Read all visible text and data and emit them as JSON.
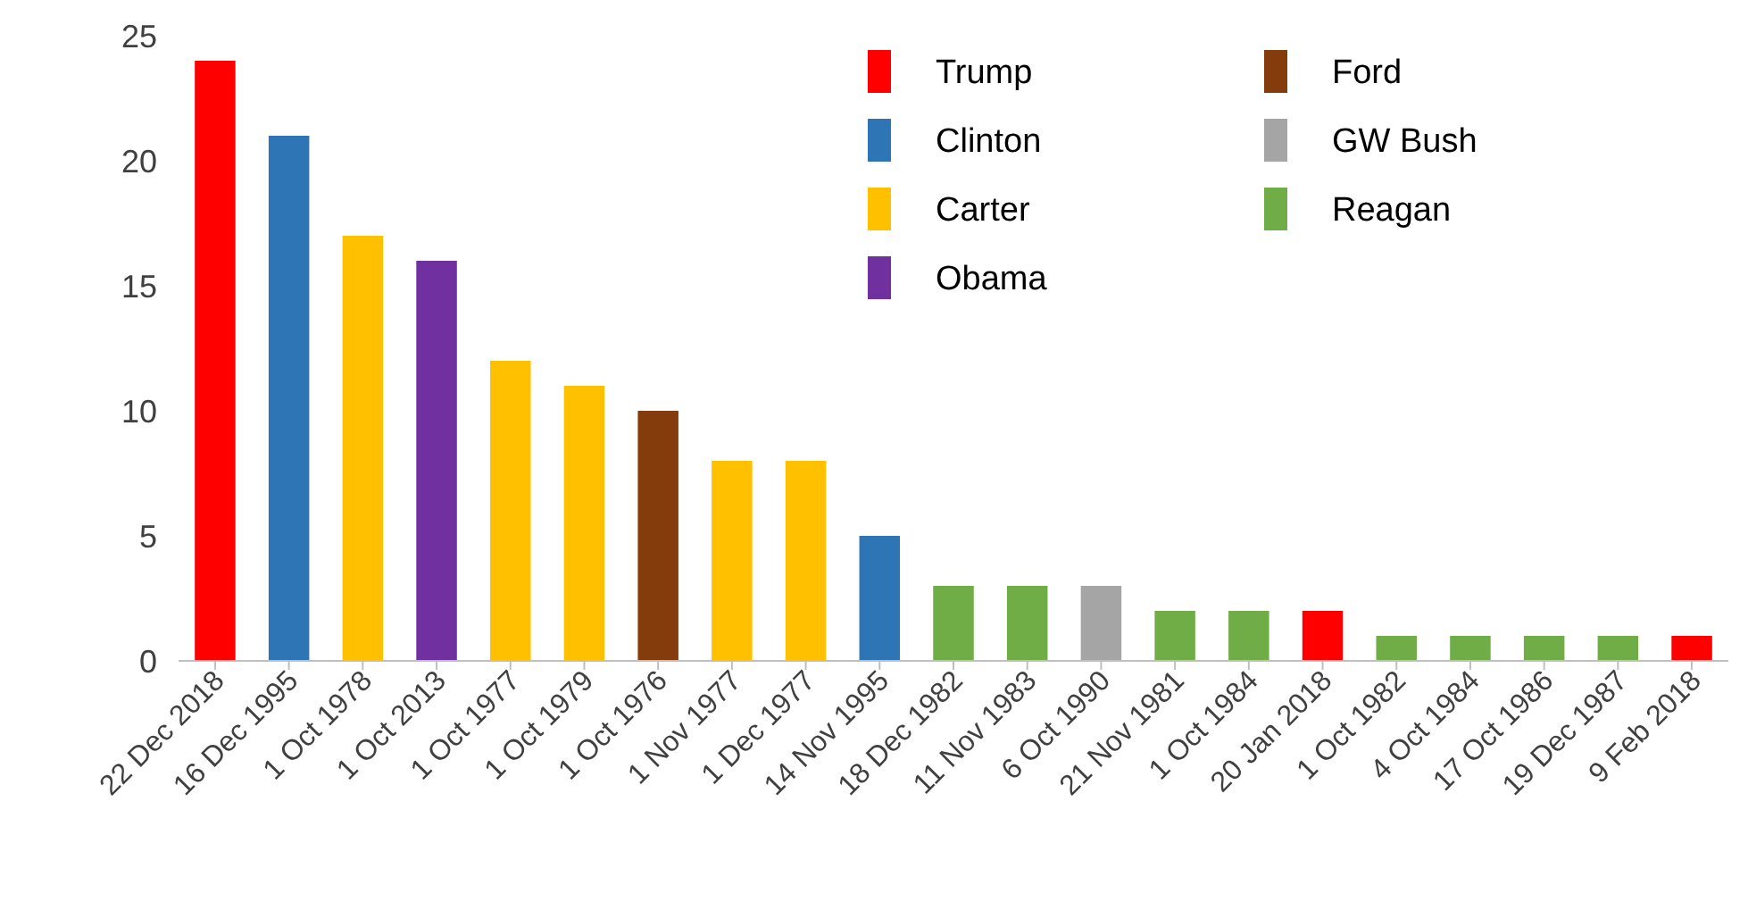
{
  "chart_data": {
    "type": "bar",
    "categories": [
      "22 Dec 2018",
      "16 Dec 1995",
      "1 Oct 1978",
      "1 Oct 2013",
      "1 Oct 1977",
      "1 Oct 1979",
      "1 Oct 1976",
      "1 Nov 1977",
      "1 Dec 1977",
      "14 Nov 1995",
      "18 Dec 1982",
      "11 Nov 1983",
      "6 Oct 1990",
      "21 Nov 1981",
      "1 Oct 1984",
      "20 Jan 2018",
      "1 Oct 1982",
      "4 Oct 1984",
      "17 Oct 1986",
      "19 Dec 1987",
      "9 Feb 2018"
    ],
    "series": [
      {
        "name": "Trump",
        "color": "#ff0000",
        "values": [
          24,
          null,
          null,
          null,
          null,
          null,
          null,
          null,
          null,
          null,
          null,
          null,
          null,
          null,
          null,
          2,
          null,
          null,
          null,
          null,
          1
        ]
      },
      {
        "name": "Clinton",
        "color": "#2e75b6",
        "values": [
          null,
          21,
          null,
          null,
          null,
          null,
          null,
          null,
          null,
          5,
          null,
          null,
          null,
          null,
          null,
          null,
          null,
          null,
          null,
          null,
          null
        ]
      },
      {
        "name": "Carter",
        "color": "#ffc000",
        "values": [
          null,
          null,
          17,
          null,
          12,
          11,
          null,
          8,
          8,
          null,
          null,
          null,
          null,
          null,
          null,
          null,
          null,
          null,
          null,
          null,
          null
        ]
      },
      {
        "name": "Obama",
        "color": "#7030a0",
        "values": [
          null,
          null,
          null,
          16,
          null,
          null,
          null,
          null,
          null,
          null,
          null,
          null,
          null,
          null,
          null,
          null,
          null,
          null,
          null,
          null,
          null
        ]
      },
      {
        "name": "Ford",
        "color": "#843c0c",
        "values": [
          null,
          null,
          null,
          null,
          null,
          null,
          10,
          null,
          null,
          null,
          null,
          null,
          null,
          null,
          null,
          null,
          null,
          null,
          null,
          null,
          null
        ]
      },
      {
        "name": "GW Bush",
        "color": "#a5a5a5",
        "values": [
          null,
          null,
          null,
          null,
          null,
          null,
          null,
          null,
          null,
          null,
          null,
          null,
          3,
          null,
          null,
          null,
          null,
          null,
          null,
          null,
          null
        ]
      },
      {
        "name": "Reagan",
        "color": "#70ad47",
        "values": [
          null,
          null,
          null,
          null,
          null,
          null,
          null,
          null,
          null,
          null,
          3,
          3,
          null,
          2,
          2,
          null,
          1,
          1,
          1,
          1,
          null
        ]
      }
    ],
    "ylim": [
      0,
      25
    ],
    "yticks": [
      0,
      5,
      10,
      15,
      20,
      25
    ],
    "legend": "top right"
  }
}
